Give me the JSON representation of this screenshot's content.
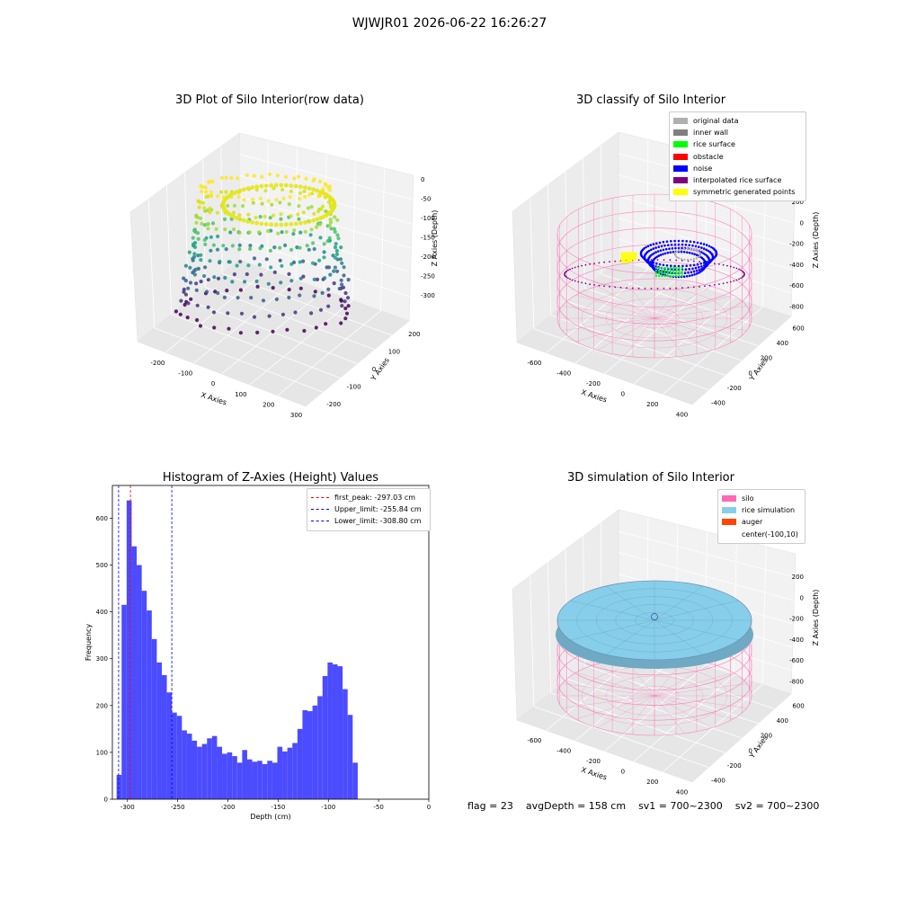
{
  "suptitle": "WJWJR01 2026-06-22 16:26:27",
  "footer": {
    "flag": "flag = 23",
    "avg_depth": "avgDepth = 158 cm",
    "sv1": "sv1 = 700~2300",
    "sv2": "sv2 = 700~2300"
  },
  "chart_data": [
    {
      "type": "scatter",
      "title": "3D Plot of Silo Interior(row data)",
      "xlabel": "X Axies",
      "ylabel": "Y Axies",
      "zlabel": "Z Axies (Depth)",
      "xticks": [
        "-200",
        "-100",
        "0",
        "100",
        "200",
        "300"
      ],
      "yticks": [
        "-200",
        "-100",
        "0",
        "100",
        "200"
      ],
      "zticks": [
        "0",
        "-50",
        "-100",
        "-150",
        "-200",
        "-250",
        "-300"
      ],
      "xlim": [
        -260,
        300
      ],
      "ylim": [
        -250,
        250
      ],
      "zlim": [
        -330,
        0
      ],
      "colormap": "viridis"
    },
    {
      "type": "scatter",
      "title": "3D classify of Silo Interior",
      "xlabel": "X Axies",
      "ylabel": "Y Axies",
      "zlabel": "Z Axies (Depth)",
      "xticks": [
        "-600",
        "-400",
        "-200",
        "0",
        "200",
        "400"
      ],
      "yticks": [
        "-400",
        "-200",
        "0",
        "200",
        "400",
        "600"
      ],
      "zticks": [
        "200",
        "0",
        "-200",
        "-400",
        "-600",
        "-800"
      ],
      "legend": [
        {
          "label": "original data",
          "color": "#b0b0b0"
        },
        {
          "label": "inner wall",
          "color": "#808080"
        },
        {
          "label": "rice surface",
          "color": "#00ff00"
        },
        {
          "label": "obstacle",
          "color": "#ff0000"
        },
        {
          "label": "noise",
          "color": "#0000ff"
        },
        {
          "label": "interpolated rice surface",
          "color": "#800080"
        },
        {
          "label": "symmetric generated points",
          "color": "#ffff00"
        }
      ],
      "legend_position": "upper-right"
    },
    {
      "type": "bar",
      "title": "Histogram of Z-Axies (Height) Values",
      "xlabel": "Depth (cm)",
      "ylabel": "Frequency",
      "xlim": [
        -315,
        0
      ],
      "ylim": [
        0,
        670
      ],
      "xticks": [
        -300,
        -250,
        -200,
        -150,
        -100,
        -50,
        0
      ],
      "yticks": [
        0,
        100,
        200,
        300,
        400,
        500,
        600
      ],
      "bin_start": -310.8,
      "bin_width": 5,
      "values": [
        52,
        415,
        638,
        540,
        500,
        445,
        403,
        342,
        292,
        265,
        228,
        185,
        178,
        147,
        140,
        125,
        112,
        118,
        130,
        135,
        112,
        97,
        100,
        92,
        78,
        105,
        85,
        80,
        82,
        75,
        82,
        78,
        112,
        102,
        110,
        120,
        150,
        190,
        188,
        200,
        220,
        263,
        292,
        288,
        284,
        235,
        180,
        78
      ],
      "color": "#4b4bff",
      "vlines": [
        {
          "label": "first_peak: -297.03 cm",
          "x": -297.03,
          "color": "#ff0000"
        },
        {
          "label": "Upper_limit: -255.84 cm",
          "x": -255.84,
          "color": "#0000ff"
        },
        {
          "label": "Lower_limit: -308.80 cm",
          "x": -308.8,
          "color": "#0000ff"
        }
      ],
      "legend_position": "upper-right"
    },
    {
      "type": "scatter",
      "title": "3D simulation of Silo Interior",
      "xlabel": "X Axies",
      "ylabel": "Y Axies",
      "zlabel": "Z Axies (Depth)",
      "xticks": [
        "-600",
        "-400",
        "-200",
        "0",
        "200",
        "400"
      ],
      "yticks": [
        "-400",
        "-200",
        "0",
        "200",
        "400",
        "600"
      ],
      "zticks": [
        "200",
        "0",
        "-200",
        "-400",
        "-600",
        "-800"
      ],
      "legend": [
        {
          "label": "silo",
          "color": "#ff69b4"
        },
        {
          "label": "rice simulation",
          "color": "#87ceeb"
        },
        {
          "label": "auger",
          "color": "#ff4500"
        },
        {
          "label": "center(-100,10)",
          "color": ""
        }
      ],
      "legend_position": "upper-right"
    }
  ]
}
